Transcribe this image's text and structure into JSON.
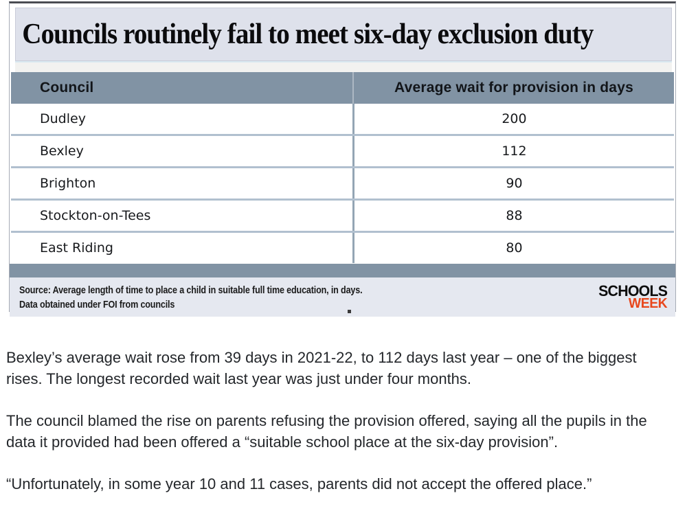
{
  "chart_data": {
    "type": "table",
    "title": "Councils routinely fail to meet six-day exclusion duty",
    "columns": [
      "Council",
      "Average wait for provision in days"
    ],
    "rows": [
      [
        "Dudley",
        "200"
      ],
      [
        "Bexley",
        "112"
      ],
      [
        "Brighton",
        "90"
      ],
      [
        "Stockton-on-Tees",
        "88"
      ],
      [
        "East Riding",
        "80"
      ]
    ],
    "unit": "days",
    "source": "Source: Average length of time to place a child in suitable full time education, in days. Data obtained under FOI from councils"
  },
  "infographic": {
    "source_line1": "Source: Average length of time to place a child in suitable full time education, in days.",
    "source_line2": "Data obtained under FOI from councils",
    "logo_schools": "SCHOOLS",
    "logo_week": "WEEK",
    "colors": {
      "header_bar": "#8193a4",
      "row_divider": "#b1c0cf",
      "title_background": "#dee1eb",
      "footer_background": "#e5e8f0",
      "logo_week_accent": "#e8471d",
      "top_rule": "#4a4c52"
    }
  },
  "article": {
    "paragraphs": [
      "Bexley’s average wait rose from 39 days in 2021-22, to 112 days last year – one of the biggest rises. The longest recorded wait last year was just under four months.",
      "The council blamed the rise on parents refusing the provision offered, saying all the pupils in the data it provided had been offered a “suitable school place at the six-day provision”.",
      "“Unfortunately, in some year 10 and 11 cases, parents did not accept the offered place.”"
    ]
  }
}
